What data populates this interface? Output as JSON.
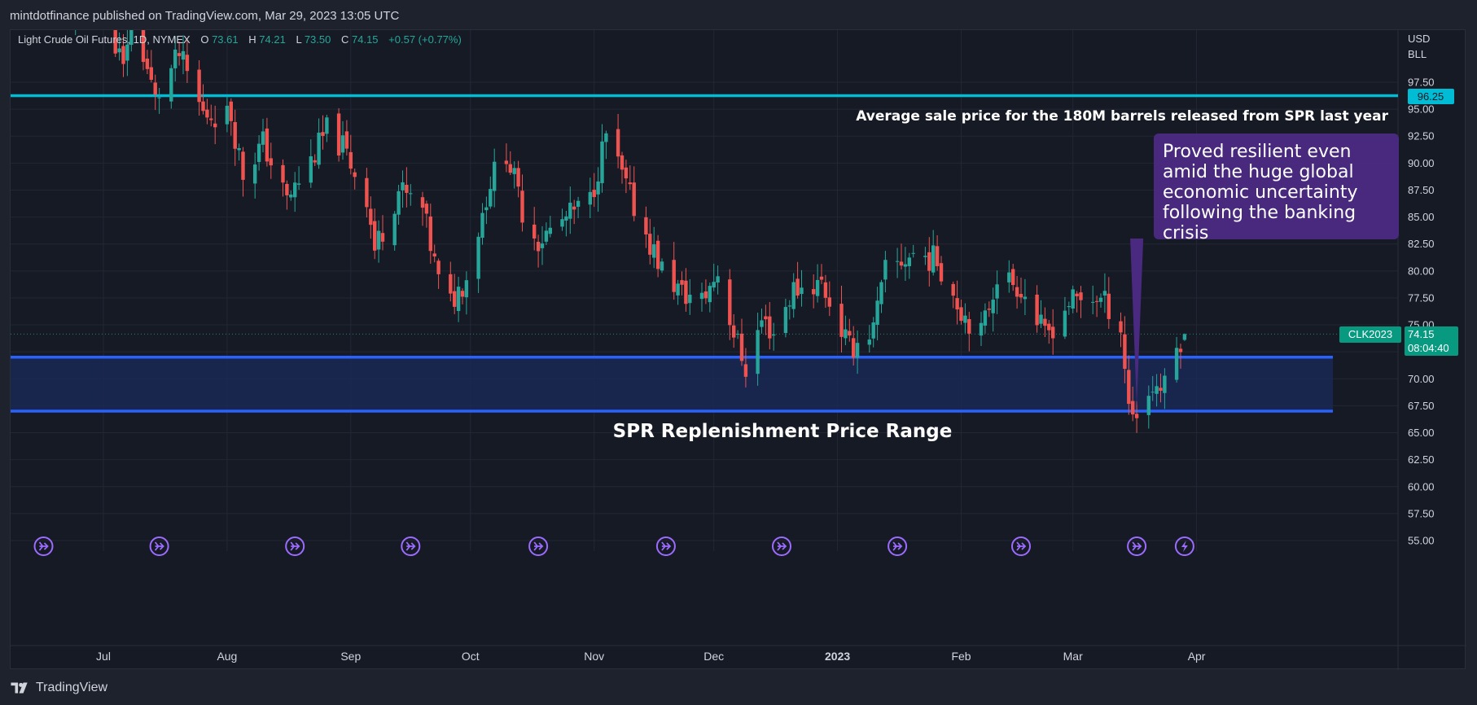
{
  "header": {
    "published": "mintdotfinance published on TradingView.com, Mar 29, 2023 13:05 UTC"
  },
  "footer": {
    "brand": "TradingView"
  },
  "colors": {
    "background": "#161a25",
    "up": "#26a69a",
    "down": "#ef5350",
    "cyan_line": "#00bcd4",
    "blue_line": "#2962ff",
    "band_fill": "#1a2a5a",
    "callout_bg": "#4a2a80",
    "badge_green": "#089981",
    "event_icon": "#9c6bff"
  },
  "legend": {
    "symbol": "Light Crude Oil Futures, 1D, NYMEX",
    "o_label": "O",
    "o_value": "73.61",
    "h_label": "H",
    "h_value": "74.21",
    "l_label": "L",
    "l_value": "73.50",
    "c_label": "C",
    "c_value": "74.15",
    "change": "+0.57 (+0.77%)"
  },
  "price_axis": {
    "currency": "USD",
    "unit": "BLL",
    "ticks": [
      "97.50",
      "95.00",
      "92.50",
      "90.00",
      "87.50",
      "85.00",
      "82.50",
      "80.00",
      "77.50",
      "75.00",
      "72.50",
      "70.00",
      "67.50",
      "65.00",
      "62.50",
      "60.00",
      "57.50",
      "55.00"
    ]
  },
  "time_axis": {
    "ticks": [
      {
        "label": "Jul",
        "day": 0,
        "bold": false
      },
      {
        "label": "Aug",
        "day": 31,
        "bold": false
      },
      {
        "label": "Sep",
        "day": 62,
        "bold": false
      },
      {
        "label": "Oct",
        "day": 92,
        "bold": false
      },
      {
        "label": "Nov",
        "day": 123,
        "bold": false
      },
      {
        "label": "Dec",
        "day": 153,
        "bold": false
      },
      {
        "label": "2023",
        "day": 184,
        "bold": true
      },
      {
        "label": "Feb",
        "day": 215,
        "bold": false
      },
      {
        "label": "Mar",
        "day": 243,
        "bold": false
      },
      {
        "label": "Apr",
        "day": 274,
        "bold": false
      }
    ]
  },
  "annotations": {
    "spr_avg_price": "96.25",
    "spr_avg_text": "Average sale price for the 180M barrels released from SPR last year",
    "band_label": "SPR Replenishment Price Range",
    "callout_lines": [
      "Proved resilient even",
      "amid the huge global",
      "economic uncertainty",
      "following the banking",
      "crisis"
    ],
    "symbol_badge": "CLK2023",
    "last_price": "74.15",
    "countdown": "08:04:40"
  },
  "event_icons": [
    {
      "day": -15,
      "type": "arrow"
    },
    {
      "day": 14,
      "type": "arrow"
    },
    {
      "day": 48,
      "type": "arrow"
    },
    {
      "day": 77,
      "type": "arrow"
    },
    {
      "day": 109,
      "type": "arrow"
    },
    {
      "day": 141,
      "type": "arrow"
    },
    {
      "day": 170,
      "type": "arrow"
    },
    {
      "day": 199,
      "type": "arrow"
    },
    {
      "day": 230,
      "type": "arrow"
    },
    {
      "day": 259,
      "type": "arrow"
    },
    {
      "day": 271,
      "type": "bolt"
    }
  ],
  "chart_data": {
    "type": "candlestick",
    "title": "Light Crude Oil Futures, 1D, NYMEX",
    "x_axis": "date (days from Jul 1, 2022)",
    "x_range": [
      "2022-06-19",
      "2023-04-12"
    ],
    "ylim": [
      53.0,
      99.5
    ],
    "last_close": 74.15,
    "horizontal_lines": [
      {
        "price": 96.25,
        "color": "#00bcd4",
        "label": "Average sale price for the 180M barrels released from SPR last year"
      },
      {
        "price": 72.0,
        "color": "#2962ff"
      },
      {
        "price": 67.0,
        "color": "#2962ff"
      }
    ],
    "band": {
      "low": 67.0,
      "high": 72.0,
      "label": "SPR Replenishment Price Range"
    },
    "waypoints": [
      [
        "2022-06-22",
        104.0
      ],
      [
        "2022-07-01",
        105.5
      ],
      [
        "2022-07-06",
        98.5
      ],
      [
        "2022-07-08",
        104.5
      ],
      [
        "2022-07-14",
        95.8
      ],
      [
        "2022-07-20",
        100.0
      ],
      [
        "2022-07-26",
        94.6
      ],
      [
        "2022-08-02",
        94.4
      ],
      [
        "2022-08-05",
        89.0
      ],
      [
        "2022-08-10",
        91.9
      ],
      [
        "2022-08-16",
        86.5
      ],
      [
        "2022-08-22",
        90.2
      ],
      [
        "2022-08-26",
        93.0
      ],
      [
        "2022-08-30",
        91.5
      ],
      [
        "2022-09-05",
        86.9
      ],
      [
        "2022-09-07",
        82.0
      ],
      [
        "2022-09-13",
        87.5
      ],
      [
        "2022-09-19",
        85.7
      ],
      [
        "2022-09-23",
        79.0
      ],
      [
        "2022-09-26",
        77.0
      ],
      [
        "2022-09-30",
        79.5
      ],
      [
        "2022-10-06",
        88.4
      ],
      [
        "2022-10-10",
        91.1
      ],
      [
        "2022-10-14",
        85.6
      ],
      [
        "2022-10-18",
        82.8
      ],
      [
        "2022-10-24",
        84.6
      ],
      [
        "2022-10-31",
        86.5
      ],
      [
        "2022-11-04",
        92.6
      ],
      [
        "2022-11-10",
        86.8
      ],
      [
        "2022-11-18",
        80.1
      ],
      [
        "2022-11-23",
        77.9
      ],
      [
        "2022-11-28",
        77.2
      ],
      [
        "2022-12-02",
        79.9
      ],
      [
        "2022-12-06",
        74.3
      ],
      [
        "2022-12-09",
        71.0
      ],
      [
        "2022-12-13",
        75.4
      ],
      [
        "2022-12-16",
        74.3
      ],
      [
        "2022-12-21",
        78.3
      ],
      [
        "2022-12-28",
        78.9
      ],
      [
        "2023-01-04",
        72.8
      ],
      [
        "2023-01-10",
        74.6
      ],
      [
        "2023-01-13",
        79.9
      ],
      [
        "2023-01-20",
        81.6
      ],
      [
        "2023-01-26",
        81.0
      ],
      [
        "2023-02-01",
        76.4
      ],
      [
        "2023-02-06",
        74.1
      ],
      [
        "2023-02-10",
        79.7
      ],
      [
        "2023-02-16",
        78.5
      ],
      [
        "2023-02-22",
        73.9
      ],
      [
        "2023-02-28",
        77.1
      ],
      [
        "2023-03-07",
        77.6
      ],
      [
        "2023-03-10",
        76.7
      ],
      [
        "2023-03-13",
        74.8
      ],
      [
        "2023-03-15",
        67.6
      ],
      [
        "2023-03-17",
        66.7
      ],
      [
        "2023-03-21",
        69.3
      ],
      [
        "2023-03-24",
        69.2
      ],
      [
        "2023-03-27",
        72.8
      ],
      [
        "2023-03-28",
        73.6
      ],
      [
        "2023-03-29",
        74.15
      ]
    ]
  }
}
